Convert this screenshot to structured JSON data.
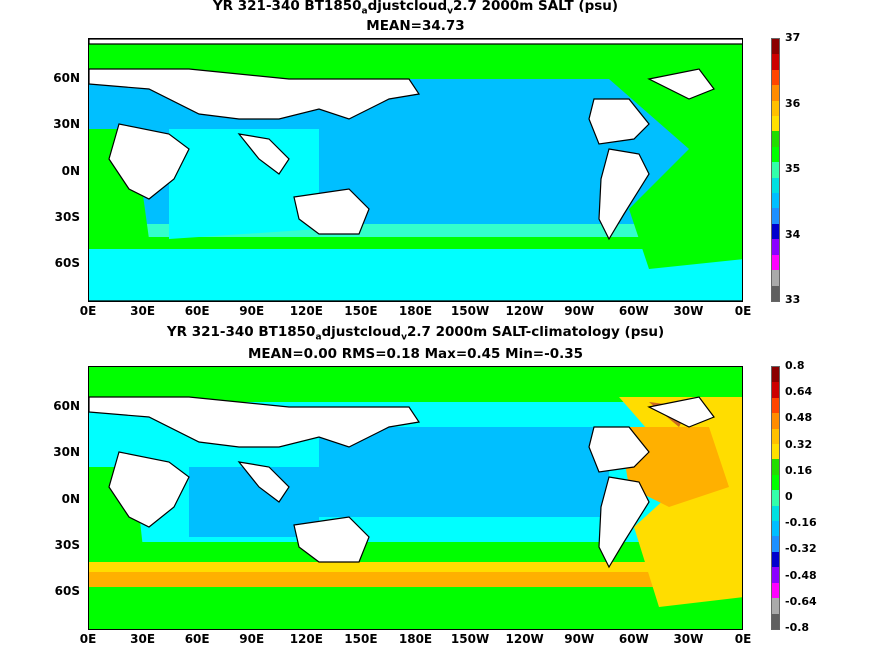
{
  "panels": [
    {
      "title_parts": [
        "YR 321-340 BT1850",
        "a",
        "djustcloud",
        "v",
        "2.7 2000m SALT (psu)"
      ],
      "subtitle": "MEAN=34.73",
      "colorbar": {
        "labels": [
          "37",
          "36",
          "35",
          "34",
          "33"
        ],
        "colors": [
          "#8b0000",
          "#cc0000",
          "#ff4500",
          "#ff8c00",
          "#ffc000",
          "#ffe000",
          "#22dd00",
          "#00ff00",
          "#33ffaa",
          "#00e0e0",
          "#00bfff",
          "#1e90ff",
          "#0000cd",
          "#8b00ff",
          "#ff00ff",
          "#aaaaaa",
          "#606060"
        ]
      }
    },
    {
      "title_parts": [
        "YR 321-340 BT1850",
        "a",
        "djustcloud",
        "v",
        "2.7 2000m SALT-climatology (psu)"
      ],
      "subtitle": "MEAN=0.00   RMS=0.18   Max=0.45   Min=-0.35",
      "colorbar": {
        "labels": [
          "0.8",
          "0.64",
          "0.48",
          "0.32",
          "0.16",
          "0",
          "-0.16",
          "-0.32",
          "-0.48",
          "-0.64",
          "-0.8"
        ],
        "colors": [
          "#8b0000",
          "#cc0000",
          "#ff4500",
          "#ff8c00",
          "#ffc000",
          "#ffe000",
          "#22dd00",
          "#00ff00",
          "#33ffaa",
          "#00e0e0",
          "#00bfff",
          "#1e90ff",
          "#0000cd",
          "#8b00ff",
          "#ff00ff",
          "#aaaaaa",
          "#606060"
        ]
      }
    }
  ],
  "axes": {
    "lat_labels": [
      "60N",
      "30N",
      "0N",
      "30S",
      "60S"
    ],
    "lon_labels": [
      "0E",
      "30E",
      "60E",
      "90E",
      "120E",
      "150E",
      "180E",
      "150W",
      "120W",
      "90W",
      "60W",
      "30W",
      "0E"
    ]
  },
  "colors": {
    "land": "#ffffff",
    "blue": "#00bfff",
    "cyan": "#00ffff",
    "teal": "#33ffcc",
    "green": "#00ff00",
    "yellow": "#ffdd00",
    "orange": "#ffb000",
    "brown": "#cc6a20"
  }
}
